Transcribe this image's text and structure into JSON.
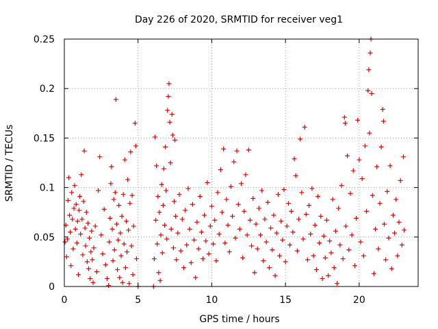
{
  "chart_data": {
    "type": "scatter",
    "title": "Day 226 of 2020, SRMTID for receiver veg1",
    "xlabel": "GPS time / hours",
    "ylabel": "SRMTID / TECUs",
    "xlim": [
      0,
      24
    ],
    "ylim": [
      0,
      0.25
    ],
    "xticks": [
      0,
      5,
      10,
      15,
      20
    ],
    "xtick_labels": [
      "0",
      "5",
      "10",
      "15",
      "20"
    ],
    "yticks": [
      0,
      0.05,
      0.1,
      0.15,
      0.2,
      0.25
    ],
    "ytick_labels": [
      "0",
      "0.05",
      "0.1",
      "0.15",
      "0.2",
      "0.25"
    ],
    "grid": true,
    "marker": "+",
    "color": "#e00000",
    "series": [
      {
        "name": "SRMTID",
        "points": [
          [
            0.05,
            0.045
          ],
          [
            0.1,
            0.062
          ],
          [
            0.15,
            0.03
          ],
          [
            0.2,
            0.048
          ],
          [
            0.25,
            0.087
          ],
          [
            0.3,
            0.11
          ],
          [
            0.35,
            0.072
          ],
          [
            0.4,
            0.055
          ],
          [
            0.45,
            0.021
          ],
          [
            0.5,
            0.095
          ],
          [
            0.55,
            0.068
          ],
          [
            0.6,
            0.038
          ],
          [
            0.65,
            0.079
          ],
          [
            0.7,
            0.102
          ],
          [
            0.75,
            0.058
          ],
          [
            0.8,
            0.083
          ],
          [
            0.85,
            0.044
          ],
          [
            0.9,
            0.066
          ],
          [
            0.95,
            0.012
          ],
          [
            1.0,
            0.077
          ],
          [
            1.05,
            0.091
          ],
          [
            1.1,
            0.053
          ],
          [
            1.15,
            0.113
          ],
          [
            1.2,
            0.068
          ],
          [
            1.25,
            0.032
          ],
          [
            1.3,
            0.086
          ],
          [
            1.35,
            0.137
          ],
          [
            1.4,
            0.059
          ],
          [
            1.45,
            0.041
          ],
          [
            1.5,
            0.075
          ],
          [
            1.55,
            0.025
          ],
          [
            1.6,
            0.064
          ],
          [
            1.65,
            0.018
          ],
          [
            1.7,
            0.049
          ],
          [
            1.75,
            0.008
          ],
          [
            1.8,
            0.035
          ],
          [
            1.85,
            0.056
          ],
          [
            1.9,
            0.027
          ],
          [
            1.95,
            0.004
          ],
          [
            2.0,
            0.039
          ],
          [
            2.1,
            0.061
          ],
          [
            2.2,
            0.015
          ],
          [
            2.3,
            0.097
          ],
          [
            2.4,
            0.131
          ],
          [
            2.5,
            0.052
          ],
          [
            2.6,
            0.033
          ],
          [
            2.7,
            0.078
          ],
          [
            2.8,
            0.022
          ],
          [
            2.9,
            0.008
          ],
          [
            3.0,
            0.001
          ],
          [
            3.05,
            0.045
          ],
          [
            3.1,
            0.069
          ],
          [
            3.15,
            0.104
          ],
          [
            3.2,
            0.121
          ],
          [
            3.25,
            0.058
          ],
          [
            3.3,
            0.026
          ],
          [
            3.35,
            0.088
          ],
          [
            3.4,
            0.037
          ],
          [
            3.45,
            0.095
          ],
          [
            3.5,
            0.189
          ],
          [
            3.55,
            0.063
          ],
          [
            3.6,
            0.017
          ],
          [
            3.65,
            0.047
          ],
          [
            3.7,
            0.082
          ],
          [
            3.75,
            0.009
          ],
          [
            3.8,
            0.054
          ],
          [
            3.85,
            0.031
          ],
          [
            3.9,
            0.071
          ],
          [
            3.95,
            0.004
          ],
          [
            4.0,
            0.093
          ],
          [
            4.05,
            0.043
          ],
          [
            4.1,
            0.128
          ],
          [
            4.15,
            0.019
          ],
          [
            4.2,
            0.066
          ],
          [
            4.25,
            0.035
          ],
          [
            4.3,
            0.108
          ],
          [
            4.35,
            0.057
          ],
          [
            4.4,
            0.003
          ],
          [
            4.45,
            0.084
          ],
          [
            4.5,
            0.136
          ],
          [
            4.55,
            0.041
          ],
          [
            4.6,
            0.092
          ],
          [
            4.65,
            0.012
          ],
          [
            4.7,
            0.061
          ],
          [
            4.8,
            0.165
          ],
          [
            4.85,
            0.142
          ],
          [
            4.9,
            0.028
          ],
          [
            5.0,
            0.0
          ],
          [
            6.05,
            0.0
          ],
          [
            6.1,
            0.028
          ],
          [
            6.15,
            0.151
          ],
          [
            6.2,
            0.067
          ],
          [
            6.25,
            0.122
          ],
          [
            6.3,
            0.043
          ],
          [
            6.35,
            0.091
          ],
          [
            6.4,
            0.014
          ],
          [
            6.45,
            0.075
          ],
          [
            6.5,
            0.006
          ],
          [
            6.55,
            0.052
          ],
          [
            6.6,
            0.103
          ],
          [
            6.65,
            0.034
          ],
          [
            6.7,
            0.082
          ],
          [
            6.75,
            0.119
          ],
          [
            6.8,
            0.062
          ],
          [
            6.85,
            0.141
          ],
          [
            6.9,
            0.097
          ],
          [
            6.95,
            0.048
          ],
          [
            7.0,
            0.178
          ],
          [
            7.05,
            0.192
          ],
          [
            7.1,
            0.205
          ],
          [
            7.15,
            0.166
          ],
          [
            7.2,
            0.125
          ],
          [
            7.25,
            0.058
          ],
          [
            7.3,
            0.174
          ],
          [
            7.35,
            0.153
          ],
          [
            7.4,
            0.039
          ],
          [
            7.45,
            0.086
          ],
          [
            7.5,
            0.148
          ],
          [
            7.55,
            0.071
          ],
          [
            7.6,
            0.027
          ],
          [
            7.7,
            0.054
          ],
          [
            7.8,
            0.093
          ],
          [
            7.9,
            0.036
          ],
          [
            8.0,
            0.068
          ],
          [
            8.1,
            0.019
          ],
          [
            8.2,
            0.077
          ],
          [
            8.3,
            0.042
          ],
          [
            8.4,
            0.099
          ],
          [
            8.5,
            0.058
          ],
          [
            8.6,
            0.024
          ],
          [
            8.7,
            0.083
          ],
          [
            8.8,
            0.047
          ],
          [
            8.9,
            0.009
          ],
          [
            9.0,
            0.065
          ],
          [
            9.1,
            0.038
          ],
          [
            9.2,
            0.091
          ],
          [
            9.3,
            0.055
          ],
          [
            9.4,
            0.028
          ],
          [
            9.5,
            0.072
          ],
          [
            9.6,
            0.046
          ],
          [
            9.7,
            0.105
          ],
          [
            9.8,
            0.033
          ],
          [
            9.9,
            0.061
          ],
          [
            10.0,
            0.081
          ],
          [
            10.1,
            0.043
          ],
          [
            10.2,
            0.067
          ],
          [
            10.3,
            0.026
          ],
          [
            10.4,
            0.095
          ],
          [
            10.5,
            0.053
          ],
          [
            10.6,
            0.118
          ],
          [
            10.7,
            0.075
          ],
          [
            10.8,
            0.139
          ],
          [
            10.9,
            0.044
          ],
          [
            11.0,
            0.088
          ],
          [
            11.1,
            0.062
          ],
          [
            11.2,
            0.035
          ],
          [
            11.3,
            0.101
          ],
          [
            11.4,
            0.071
          ],
          [
            11.5,
            0.126
          ],
          [
            11.6,
            0.049
          ],
          [
            11.7,
            0.137
          ],
          [
            11.8,
            0.083
          ],
          [
            11.9,
            0.058
          ],
          [
            12.0,
            0.104
          ],
          [
            12.1,
            0.029
          ],
          [
            12.2,
            0.076
          ],
          [
            12.3,
            0.113
          ],
          [
            12.4,
            0.052
          ],
          [
            12.5,
            0.138
          ],
          [
            12.6,
            0.067
          ],
          [
            12.7,
            0.041
          ],
          [
            12.8,
            0.089
          ],
          [
            12.9,
            0.014
          ],
          [
            13.0,
            0.063
          ],
          [
            13.1,
            0.038
          ],
          [
            13.2,
            0.079
          ],
          [
            13.3,
            0.052
          ],
          [
            13.4,
            0.097
          ],
          [
            13.5,
            0.026
          ],
          [
            13.6,
            0.068
          ],
          [
            13.7,
            0.045
          ],
          [
            13.8,
            0.085
          ],
          [
            13.9,
            0.019
          ],
          [
            14.0,
            0.059
          ],
          [
            14.1,
            0.037
          ],
          [
            14.2,
            0.072
          ],
          [
            14.3,
            0.011
          ],
          [
            14.4,
            0.054
          ],
          [
            14.5,
            0.093
          ],
          [
            14.6,
            0.031
          ],
          [
            14.7,
            0.066
          ],
          [
            14.8,
            0.047
          ],
          [
            14.9,
            0.098
          ],
          [
            15.0,
            0.025
          ],
          [
            15.1,
            0.061
          ],
          [
            15.2,
            0.084
          ],
          [
            15.3,
            0.042
          ],
          [
            15.4,
            0.076
          ],
          [
            15.5,
            0.055
          ],
          [
            15.6,
            0.129
          ],
          [
            15.7,
            0.112
          ],
          [
            15.8,
            0.036
          ],
          [
            15.9,
            0.068
          ],
          [
            16.0,
            0.149
          ],
          [
            16.1,
            0.095
          ],
          [
            16.2,
            0.048
          ],
          [
            16.3,
            0.161
          ],
          [
            16.4,
            0.073
          ],
          [
            16.5,
            0.027
          ],
          [
            16.6,
            0.082
          ],
          [
            16.7,
            0.053
          ],
          [
            16.8,
            0.099
          ],
          [
            16.9,
            0.031
          ],
          [
            17.0,
            0.062
          ],
          [
            17.1,
            0.017
          ],
          [
            17.2,
            0.091
          ],
          [
            17.3,
            0.044
          ],
          [
            17.4,
            0.071
          ],
          [
            17.5,
            0.008
          ],
          [
            17.6,
            0.051
          ],
          [
            17.7,
            0.029
          ],
          [
            17.8,
            0.067
          ],
          [
            17.9,
            0.011
          ],
          [
            18.0,
            0.046
          ],
          [
            18.1,
            0.034
          ],
          [
            18.2,
            0.088
          ],
          [
            18.3,
            0.019
          ],
          [
            18.4,
            0.056
          ],
          [
            18.5,
            0.003
          ],
          [
            18.6,
            0.079
          ],
          [
            18.7,
            0.042
          ],
          [
            18.8,
            0.102
          ],
          [
            18.9,
            0.028
          ],
          [
            19.0,
            0.171
          ],
          [
            19.05,
            0.165
          ],
          [
            19.1,
            0.061
          ],
          [
            19.2,
            0.132
          ],
          [
            19.3,
            0.037
          ],
          [
            19.4,
            0.094
          ],
          [
            19.5,
            0.052
          ],
          [
            19.6,
            0.117
          ],
          [
            19.7,
            0.021
          ],
          [
            19.8,
            0.069
          ],
          [
            19.9,
            0.168
          ],
          [
            20.0,
            0.128
          ],
          [
            20.1,
            0.045
          ],
          [
            20.2,
            0.109
          ],
          [
            20.3,
            0.031
          ],
          [
            20.4,
            0.142
          ],
          [
            20.5,
            0.076
          ],
          [
            20.6,
            0.198
          ],
          [
            20.65,
            0.219
          ],
          [
            20.7,
            0.155
          ],
          [
            20.75,
            0.236
          ],
          [
            20.8,
            0.25
          ],
          [
            20.85,
            0.195
          ],
          [
            20.9,
            0.092
          ],
          [
            21.0,
            0.013
          ],
          [
            21.1,
            0.058
          ],
          [
            21.2,
            0.121
          ],
          [
            21.3,
            0.038
          ],
          [
            21.4,
            0.084
          ],
          [
            21.5,
            0.141
          ],
          [
            21.6,
            0.179
          ],
          [
            21.65,
            0.167
          ],
          [
            21.7,
            0.063
          ],
          [
            21.8,
            0.027
          ],
          [
            21.9,
            0.096
          ],
          [
            22.0,
            0.049
          ],
          [
            22.1,
            0.122
          ],
          [
            22.2,
            0.018
          ],
          [
            22.3,
            0.072
          ],
          [
            22.4,
            0.054
          ],
          [
            22.5,
            0.088
          ],
          [
            22.6,
            0.031
          ],
          [
            22.7,
            0.065
          ],
          [
            22.8,
            0.107
          ],
          [
            22.9,
            0.042
          ],
          [
            23.0,
            0.131
          ],
          [
            23.05,
            0.057
          ]
        ]
      }
    ]
  }
}
